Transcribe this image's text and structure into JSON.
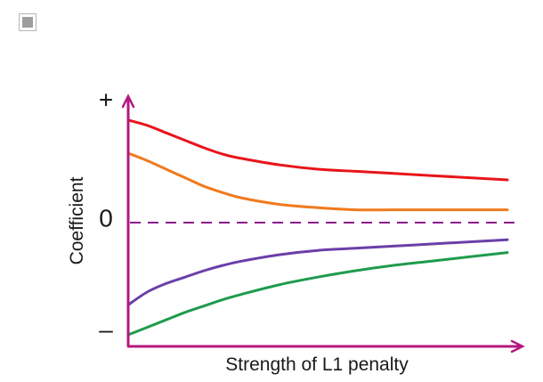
{
  "checkbox": {
    "checked": false
  },
  "chart_data": {
    "type": "line",
    "xlabel": "Strength of L1 penalty",
    "ylabel": "Coefficient",
    "x_ticks": [],
    "y_ticks": [
      {
        "label": "+",
        "value": 1.0
      },
      {
        "label": "0",
        "value": 0.0
      },
      {
        "label": "–",
        "value": -1.0
      }
    ],
    "xlim": [
      0,
      1
    ],
    "ylim": [
      -1.0,
      1.0
    ],
    "zero_line": {
      "value": 0,
      "style": "dashed",
      "color": "#8b1a8b"
    },
    "axis_color": "#b5177f",
    "series": [
      {
        "color": "#e8141b",
        "x": [
          0,
          0.05,
          0.1,
          0.15,
          0.2,
          0.25,
          0.3,
          0.4,
          0.5,
          0.6,
          0.7,
          0.8,
          0.9,
          1.0
        ],
        "y": [
          0.96,
          0.91,
          0.84,
          0.77,
          0.7,
          0.64,
          0.6,
          0.54,
          0.5,
          0.48,
          0.46,
          0.44,
          0.42,
          0.4
        ]
      },
      {
        "color": "#f07a1e",
        "x": [
          0,
          0.05,
          0.1,
          0.15,
          0.2,
          0.25,
          0.3,
          0.4,
          0.5,
          0.6,
          0.7,
          0.8,
          0.9,
          1.0
        ],
        "y": [
          0.65,
          0.58,
          0.5,
          0.42,
          0.34,
          0.28,
          0.23,
          0.17,
          0.14,
          0.12,
          0.12,
          0.12,
          0.12,
          0.12
        ]
      },
      {
        "color": "#6b3fa8",
        "x": [
          0,
          0.05,
          0.1,
          0.15,
          0.2,
          0.25,
          0.3,
          0.4,
          0.5,
          0.6,
          0.7,
          0.8,
          0.9,
          1.0
        ],
        "y": [
          -0.77,
          -0.65,
          -0.57,
          -0.51,
          -0.45,
          -0.4,
          -0.36,
          -0.3,
          -0.26,
          -0.24,
          -0.22,
          -0.2,
          -0.18,
          -0.16
        ]
      },
      {
        "color": "#1f9b4d",
        "x": [
          0,
          0.05,
          0.1,
          0.15,
          0.2,
          0.25,
          0.3,
          0.4,
          0.5,
          0.6,
          0.7,
          0.8,
          0.9,
          1.0
        ],
        "y": [
          -1.05,
          -0.98,
          -0.91,
          -0.84,
          -0.78,
          -0.72,
          -0.67,
          -0.58,
          -0.51,
          -0.45,
          -0.4,
          -0.36,
          -0.32,
          -0.28
        ]
      }
    ]
  }
}
